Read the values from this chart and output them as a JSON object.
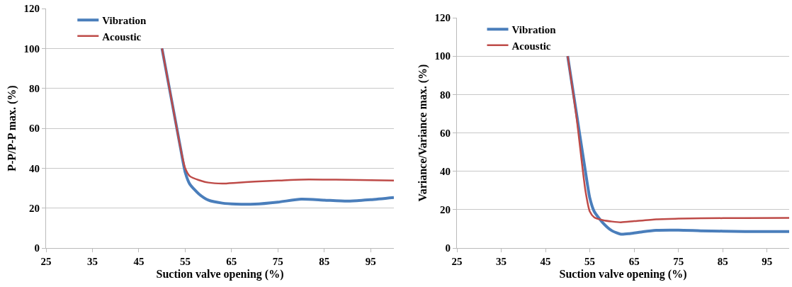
{
  "chart_data": [
    {
      "type": "line",
      "xlabel": "Suction valve opening (%)",
      "ylabel": "P-P/P-P max. (%)",
      "xlim": [
        25,
        100
      ],
      "xticks": [
        25,
        35,
        45,
        55,
        65,
        75,
        85,
        95
      ],
      "ylim": [
        0,
        120
      ],
      "yticks": [
        0,
        20,
        40,
        60,
        80,
        100,
        120
      ],
      "grid": "y",
      "legend": "top left",
      "marker": "none",
      "line_style": "solid",
      "series": [
        {
          "name": "Vibration",
          "color": "#4a7ebb",
          "x": [
            50,
            52,
            54,
            55,
            56,
            58,
            60,
            63,
            66,
            70,
            75,
            80,
            85,
            90,
            95,
            100
          ],
          "values": [
            100,
            75,
            50,
            38,
            32,
            27,
            24,
            22.5,
            22,
            22,
            23,
            24.5,
            24,
            23.5,
            24.2,
            25.3
          ]
        },
        {
          "name": "Acoustic",
          "color": "#be4b48",
          "x": [
            50,
            52,
            54,
            55,
            56,
            58,
            60,
            63,
            66,
            70,
            75,
            80,
            85,
            90,
            95,
            100
          ],
          "values": [
            100,
            75,
            50,
            40,
            36,
            34,
            32.8,
            32.3,
            32.7,
            33.3,
            33.8,
            34.3,
            34.3,
            34.2,
            34,
            33.8
          ]
        }
      ]
    },
    {
      "type": "line",
      "xlabel": "Suction valve opening (%)",
      "ylabel": "Variance/Variance max. (%)",
      "xlim": [
        25,
        100
      ],
      "xticks": [
        25,
        35,
        45,
        55,
        65,
        75,
        85,
        95
      ],
      "ylim": [
        0,
        120
      ],
      "yticks": [
        0,
        20,
        40,
        60,
        80,
        100,
        120
      ],
      "grid": "y",
      "legend": "top left",
      "marker": "none",
      "line_style": "solid",
      "series": [
        {
          "name": "Vibration",
          "color": "#4a7ebb",
          "x": [
            50,
            52,
            54,
            55,
            56,
            58,
            60,
            62,
            64,
            67,
            70,
            75,
            80,
            85,
            90,
            100
          ],
          "values": [
            100,
            70,
            40,
            26,
            19,
            13,
            9,
            7.2,
            7.5,
            8.5,
            9.2,
            9.3,
            9,
            8.8,
            8.6,
            8.6
          ]
        },
        {
          "name": "Acoustic",
          "color": "#be4b48",
          "x": [
            50,
            52,
            54,
            55,
            56,
            58,
            60,
            62,
            65,
            70,
            75,
            80,
            90,
            100
          ],
          "values": [
            100,
            68,
            30,
            19,
            16,
            14.5,
            13.8,
            13.4,
            14,
            15,
            15.3,
            15.5,
            15.6,
            15.7
          ]
        }
      ]
    }
  ]
}
